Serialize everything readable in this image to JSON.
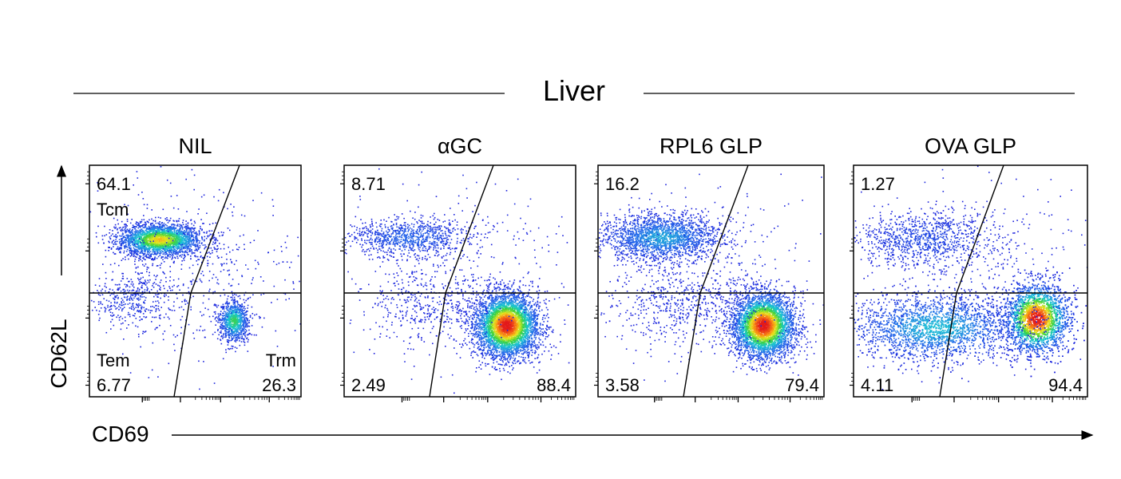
{
  "figure": {
    "title": "Liver",
    "ylabel": "CD62L",
    "xlabel": "CD69"
  },
  "colors": {
    "density_low": "#1a1adb",
    "density_mid": "#19c8d2",
    "density_high": "#e31a1a",
    "axis": "#000000"
  },
  "chart_data": [
    {
      "type": "scatter",
      "panel": "NIL",
      "quadrants": {
        "top_left": "64.1",
        "bottom_left": "6.77",
        "bottom_right": "26.3"
      },
      "gate_names": {
        "top_left": "Tcm",
        "bottom_left": "Tem",
        "bottom_right": "Trm"
      },
      "populations": [
        {
          "cx": 0.33,
          "cy": 0.68,
          "sx": 0.1,
          "sy": 0.035,
          "n": 2600,
          "peak": 0.8
        },
        {
          "cx": 0.2,
          "cy": 0.42,
          "sx": 0.1,
          "sy": 0.06,
          "n": 400,
          "peak": 0.1
        },
        {
          "cx": 0.68,
          "cy": 0.33,
          "sx": 0.035,
          "sy": 0.045,
          "n": 900,
          "peak": 0.6
        },
        {
          "cx": 0.5,
          "cy": 0.55,
          "sx": 0.25,
          "sy": 0.18,
          "n": 500,
          "peak": 0.05
        }
      ]
    },
    {
      "type": "scatter",
      "panel": "αGC",
      "quadrants": {
        "top_left": "8.71",
        "bottom_left": "2.49",
        "bottom_right": "88.4"
      },
      "gate_names": {},
      "populations": [
        {
          "cx": 0.28,
          "cy": 0.69,
          "sx": 0.13,
          "sy": 0.04,
          "n": 900,
          "peak": 0.25
        },
        {
          "cx": 0.7,
          "cy": 0.31,
          "sx": 0.07,
          "sy": 0.07,
          "n": 4200,
          "peak": 1.0
        },
        {
          "cx": 0.35,
          "cy": 0.4,
          "sx": 0.15,
          "sy": 0.08,
          "n": 400,
          "peak": 0.05
        },
        {
          "cx": 0.5,
          "cy": 0.55,
          "sx": 0.25,
          "sy": 0.2,
          "n": 300,
          "peak": 0.05
        }
      ]
    },
    {
      "type": "scatter",
      "panel": "RPL6 GLP",
      "quadrants": {
        "top_left": "16.2",
        "bottom_left": "3.58",
        "bottom_right": "79.4"
      },
      "gate_names": {},
      "populations": [
        {
          "cx": 0.28,
          "cy": 0.69,
          "sx": 0.13,
          "sy": 0.05,
          "n": 2000,
          "peak": 0.4
        },
        {
          "cx": 0.73,
          "cy": 0.31,
          "sx": 0.07,
          "sy": 0.07,
          "n": 4000,
          "peak": 1.0
        },
        {
          "cx": 0.35,
          "cy": 0.4,
          "sx": 0.15,
          "sy": 0.08,
          "n": 500,
          "peak": 0.05
        },
        {
          "cx": 0.5,
          "cy": 0.55,
          "sx": 0.25,
          "sy": 0.2,
          "n": 300,
          "peak": 0.05
        }
      ]
    },
    {
      "type": "scatter",
      "panel": "OVA GLP",
      "quadrants": {
        "top_left": "1.27",
        "bottom_left": "4.11",
        "bottom_right": "94.4"
      },
      "gate_names": {},
      "populations": [
        {
          "cx": 0.3,
          "cy": 0.68,
          "sx": 0.15,
          "sy": 0.06,
          "n": 1000,
          "peak": 0.15
        },
        {
          "cx": 0.78,
          "cy": 0.34,
          "sx": 0.07,
          "sy": 0.075,
          "n": 4500,
          "peak": 1.0
        },
        {
          "cx": 0.35,
          "cy": 0.3,
          "sx": 0.18,
          "sy": 0.07,
          "n": 3000,
          "peak": 0.45
        },
        {
          "cx": 0.55,
          "cy": 0.55,
          "sx": 0.25,
          "sy": 0.2,
          "n": 300,
          "peak": 0.05
        }
      ]
    }
  ]
}
